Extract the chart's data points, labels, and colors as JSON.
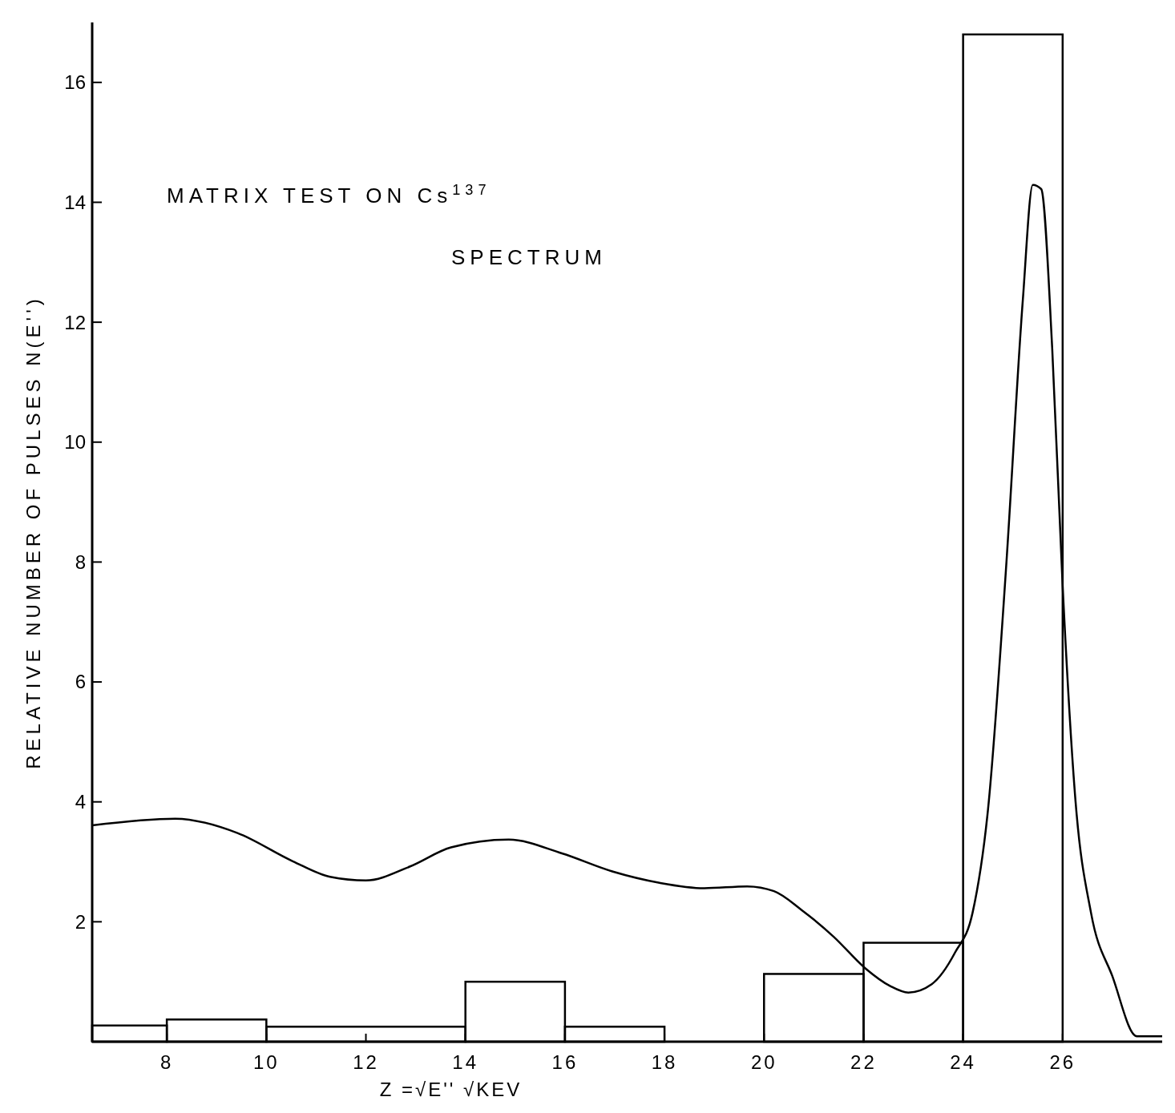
{
  "chart_data": {
    "type": "histogram",
    "xlabel": "Z =√E''   √KEV",
    "ylabel": "RELATIVE NUMBER OF PULSES    N(E'')",
    "annotations": [
      "MATRIX TEST ON Cs$^{137}$",
      "SPECTRUM"
    ],
    "bins": [
      6.5,
      8,
      10,
      14,
      16,
      18,
      20,
      22,
      24,
      26
    ],
    "values": [
      0.27,
      0.37,
      0.25,
      1.0,
      0.25,
      0,
      1.13,
      1.65,
      16.8
    ],
    "color": "#000000",
    "series": [
      {
        "type": "line",
        "color": "#000000",
        "x": [
          6.5,
          8.17,
          9.42,
          10.53,
          11.28,
          12.0,
          12.88,
          13.71,
          14.87,
          15.94,
          16.95,
          17.9,
          18.8,
          19.66,
          20.2,
          20.75,
          21.4,
          22.04,
          22.53,
          22.9,
          23.37,
          23.84,
          24.19,
          24.5,
          24.86,
          25.2,
          25.4,
          25.57,
          25.79,
          26.0,
          26.26,
          26.57,
          27.0,
          27.49,
          28.0
        ],
        "values": [
          3.61,
          3.72,
          3.48,
          3.01,
          2.75,
          2.69,
          2.92,
          3.24,
          3.37,
          3.14,
          2.84,
          2.65,
          2.56,
          2.59,
          2.51,
          2.2,
          1.75,
          1.22,
          0.93,
          0.82,
          0.96,
          1.49,
          2.15,
          3.87,
          7.86,
          12.37,
          14.29,
          14.22,
          11.57,
          7.6,
          4.0,
          2.15,
          1.09,
          0.09,
          0.09
        ]
      }
    ],
    "xlim": [
      6.5,
      28
    ],
    "xticks": [
      8,
      10,
      12,
      14,
      16,
      18,
      20,
      22,
      24,
      26
    ],
    "ylim": [
      0,
      17
    ],
    "yticks": [
      2,
      4,
      6,
      8,
      10,
      12,
      14,
      16
    ],
    "grid": false,
    "marker": "none",
    "line_style": "solid"
  }
}
